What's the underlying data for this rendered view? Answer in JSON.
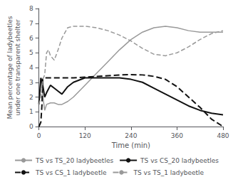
{
  "chart_data": {
    "type": "line",
    "xlabel": "Time (min)",
    "ylabel": "Mean percentage of ladybeetles\nunder one transparent shelter",
    "xlim": [
      0,
      480
    ],
    "ylim": [
      0,
      8
    ],
    "xticks": [
      0,
      120,
      240,
      360,
      480
    ],
    "yticks": [
      0,
      1,
      2,
      3,
      4,
      5,
      6,
      7,
      8
    ],
    "grid": false,
    "legend": "bottom",
    "series": [
      {
        "name": "TS vs TS_20 ladybeetles",
        "color": "#999999",
        "line_style": "solid",
        "x": [
          0,
          5,
          10,
          15,
          20,
          30,
          40,
          50,
          60,
          75,
          90,
          120,
          150,
          180,
          210,
          240,
          270,
          300,
          330,
          360,
          390,
          420,
          450,
          480
        ],
        "values": [
          1.6,
          3.2,
          2.1,
          1.1,
          1.5,
          1.6,
          1.6,
          1.5,
          1.5,
          1.7,
          2.0,
          2.8,
          3.6,
          4.4,
          5.2,
          5.9,
          6.4,
          6.7,
          6.8,
          6.7,
          6.5,
          6.4,
          6.4,
          6.4
        ]
      },
      {
        "name": "TS vs CS_20 ladybeetles",
        "color": "#111111",
        "line_style": "solid",
        "x": [
          0,
          5,
          10,
          15,
          20,
          30,
          40,
          50,
          60,
          75,
          90,
          120,
          150,
          180,
          210,
          240,
          270,
          300,
          330,
          360,
          390,
          420,
          450,
          480
        ],
        "values": [
          1.5,
          3.3,
          2.8,
          2.0,
          2.3,
          2.8,
          2.6,
          2.4,
          2.2,
          2.7,
          3.0,
          3.3,
          3.3,
          3.3,
          3.3,
          3.2,
          3.0,
          2.6,
          2.2,
          1.8,
          1.4,
          1.1,
          0.9,
          0.8
        ]
      },
      {
        "name": "TS vs CS_1 ladybeetle",
        "color": "#111111",
        "line_style": "dashed",
        "x": [
          0,
          5,
          8,
          10,
          15,
          20,
          30,
          40,
          50,
          60,
          75,
          90,
          120,
          150,
          180,
          210,
          240,
          270,
          300,
          330,
          360,
          390,
          420,
          450,
          480
        ],
        "values": [
          0.0,
          0.3,
          1.5,
          3.25,
          3.3,
          3.3,
          3.3,
          3.3,
          3.3,
          3.3,
          3.3,
          3.3,
          3.35,
          3.4,
          3.45,
          3.5,
          3.52,
          3.5,
          3.4,
          3.2,
          2.7,
          2.0,
          1.3,
          0.5,
          0.0
        ]
      },
      {
        "name": "TS vs TS_1 ladybeetle",
        "color": "#999999",
        "line_style": "dashed",
        "x": [
          0,
          5,
          10,
          15,
          20,
          25,
          30,
          40,
          50,
          60,
          75,
          90,
          120,
          150,
          180,
          210,
          240,
          270,
          300,
          330,
          360,
          390,
          420,
          450,
          480
        ],
        "values": [
          1.5,
          2.0,
          3.2,
          3.5,
          5.0,
          5.2,
          4.8,
          4.5,
          5.2,
          6.0,
          6.7,
          6.8,
          6.8,
          6.7,
          6.5,
          6.2,
          5.8,
          5.3,
          4.9,
          4.8,
          5.0,
          5.4,
          5.9,
          6.3,
          6.5
        ]
      }
    ]
  }
}
